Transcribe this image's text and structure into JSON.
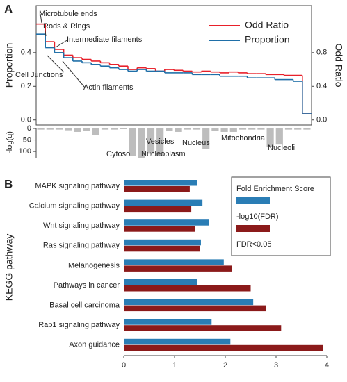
{
  "chart_data": [
    {
      "type": "step",
      "panel": "A",
      "y_label": "Proportion",
      "y2_label": "Odd Ratio",
      "categories": [
        null,
        null,
        null,
        null,
        null,
        null,
        null,
        null,
        null,
        null,
        null,
        null,
        null,
        null,
        null,
        null,
        null,
        null,
        null,
        null,
        null,
        null,
        null,
        null,
        null,
        null,
        null,
        null,
        null,
        null
      ],
      "series": [
        {
          "name": "Odd Ratio",
          "color": "#e8202a",
          "axis": "y2",
          "values": [
            1.14,
            0.93,
            0.84,
            0.77,
            0.74,
            0.72,
            0.7,
            0.68,
            0.66,
            0.64,
            0.6,
            0.62,
            0.61,
            0.58,
            0.6,
            0.59,
            0.58,
            0.57,
            0.58,
            0.57,
            0.56,
            0.57,
            0.56,
            0.55,
            0.55,
            0.54,
            0.54,
            0.53,
            0.53,
            0.08
          ]
        },
        {
          "name": "Proportion",
          "color": "#1f6fa8",
          "values": [
            0.51,
            0.43,
            0.4,
            0.37,
            0.35,
            0.34,
            0.33,
            0.32,
            0.31,
            0.3,
            0.29,
            0.3,
            0.29,
            0.29,
            0.28,
            0.28,
            0.28,
            0.27,
            0.27,
            0.27,
            0.26,
            0.26,
            0.26,
            0.25,
            0.25,
            0.25,
            0.24,
            0.24,
            0.23,
            0.04
          ]
        }
      ],
      "ylim": [
        -0.03,
        0.68
      ],
      "yticks": [
        {
          "value": 0,
          "label": "0.0"
        },
        0.2,
        0.4
      ],
      "y2lim": [
        -0.06,
        1.36
      ],
      "y2ticks": [
        {
          "value": 0,
          "label": "0.0"
        },
        0.4,
        0.8
      ],
      "annotations": [
        "Microtubule ends",
        "Rods & Rings",
        "Intermediate filaments",
        "Cell Junctions",
        "Actin filaments"
      ]
    },
    {
      "type": "bar",
      "y_label": "-log(q)",
      "color": "#bdbdbd",
      "inverted": true,
      "categories": [
        null,
        null,
        null,
        null,
        null,
        null,
        null,
        null,
        null,
        null,
        null,
        null,
        null,
        null,
        null,
        null,
        null,
        null,
        null,
        null,
        null,
        null,
        null,
        null,
        null,
        null,
        null,
        null,
        null,
        null
      ],
      "values": [
        5,
        5,
        5,
        8,
        15,
        10,
        30,
        5,
        5,
        3,
        120,
        130,
        110,
        120,
        10,
        15,
        5,
        5,
        90,
        10,
        15,
        15,
        5,
        5,
        5,
        80,
        70,
        5,
        5,
        5
      ],
      "ylim": [
        0,
        130
      ],
      "yticks": [
        0,
        50,
        100
      ],
      "annotations": [
        "Cytosol",
        "Vesicles",
        "Nucleoplasm",
        "Nucleus",
        "Mitochondria",
        "Nucleoli"
      ]
    },
    {
      "type": "hbar",
      "panel": "B",
      "y_label": "KEGG pathway",
      "categories": [
        "MAPK signaling pathway",
        "Calcium signaling pathway",
        "Wnt signaling pathway",
        "Ras signaling pathway",
        "Melanogenesis",
        "Pathways in cancer",
        "Basal cell carcinoma",
        "Rap1 signaling pathway",
        "Axon guidance"
      ],
      "series": [
        {
          "name": "Fold Enrichment Score",
          "color": "#2a7db5",
          "values": [
            1.45,
            1.55,
            1.68,
            1.52,
            1.97,
            1.45,
            2.55,
            1.73,
            2.1
          ]
        },
        {
          "name": "-log10(FDR)",
          "color": "#8b1a1a",
          "values": [
            1.3,
            1.33,
            1.4,
            1.5,
            2.13,
            2.5,
            2.8,
            3.1,
            3.92
          ]
        }
      ],
      "xlim": [
        0,
        4
      ],
      "xticks": [
        0,
        1,
        2,
        3,
        4
      ],
      "legend_note": "FDR<0.05"
    }
  ]
}
